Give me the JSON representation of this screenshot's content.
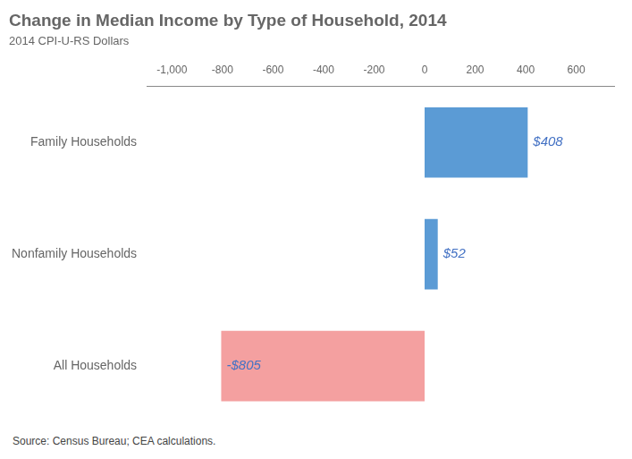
{
  "chart_data": {
    "type": "bar",
    "orientation": "horizontal",
    "title": "Change in Median Income by Type of Household, 2014",
    "subtitle": "2014 CPI-U-RS Dollars",
    "annotations": [
      "Source: Census Bureau; CEA calculations."
    ],
    "categories": [
      "Family Households",
      "Nonfamily Households",
      "All Households"
    ],
    "values": [
      408,
      52,
      -805
    ],
    "value_labels": [
      "$408",
      "$52",
      "-$805"
    ],
    "data_labels": true,
    "colors": [
      "#5b9bd5",
      "#5b9bd5",
      "#f4a0a0"
    ],
    "xlim": [
      -1100,
      750
    ],
    "xticks": [
      {
        "value": -1000,
        "label": "-1,000"
      },
      -800,
      -600,
      -400,
      -200,
      0,
      200,
      400,
      600
    ],
    "grid": false
  }
}
